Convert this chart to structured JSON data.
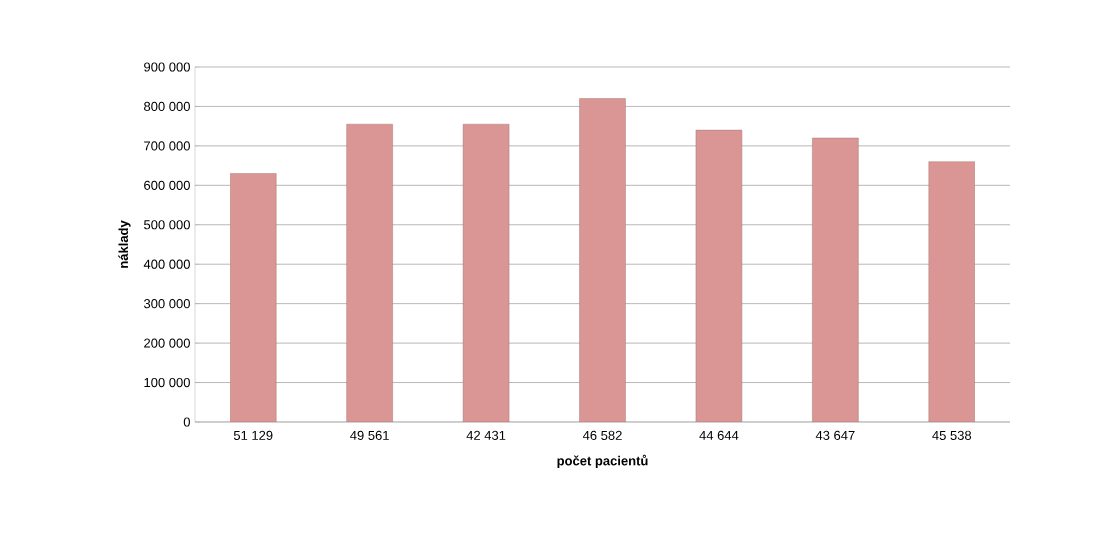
{
  "chart_data": {
    "type": "bar",
    "xlabel": "počet pacientů",
    "ylabel": "náklady",
    "categories": [
      "51 129",
      "49 561",
      "42 431",
      "46 582",
      "44 644",
      "43 647",
      "45 538"
    ],
    "values": [
      630000,
      755000,
      755000,
      820000,
      740000,
      720000,
      660000
    ],
    "color": "#da9694",
    "ylim": [
      0,
      900000
    ],
    "yticks": [
      {
        "value": 0,
        "label": "0"
      },
      {
        "value": 100000,
        "label": "100 000"
      },
      {
        "value": 200000,
        "label": "200 000"
      },
      {
        "value": 300000,
        "label": "300 000"
      },
      {
        "value": 400000,
        "label": "400 000"
      },
      {
        "value": 500000,
        "label": "500 000"
      },
      {
        "value": 600000,
        "label": "600 000"
      },
      {
        "value": 700000,
        "label": "700 000"
      },
      {
        "value": 800000,
        "label": "800 000"
      },
      {
        "value": 900000,
        "label": "900 000"
      }
    ],
    "grid": "y"
  }
}
